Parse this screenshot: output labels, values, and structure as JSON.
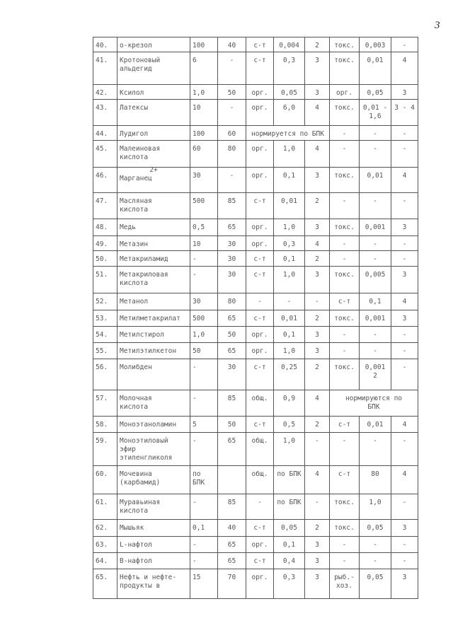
{
  "page_number": "3",
  "rows": [
    {
      "cells": [
        "40.",
        "о-крезол",
        "100",
        "40",
        "с-т",
        "0,004",
        "2",
        "токс.",
        "0,003",
        "-"
      ]
    },
    {
      "cells": [
        "41.",
        "Кротоновый\nальдегид",
        "6",
        "-",
        "с-т",
        "0,3",
        "3",
        "токс.",
        "0,01",
        "4"
      ]
    },
    {
      "cells": [
        "42.",
        "Ксилол",
        "1,0",
        "50",
        "орг.",
        "0,05",
        "3",
        "орг.",
        "0,05",
        "3"
      ]
    },
    {
      "cells": [
        "43.",
        "Латексы",
        "10",
        "-",
        "орг.",
        "6,0",
        "4",
        "токс.",
        "0,01 -\n1,6",
        "3 - 4"
      ]
    },
    {
      "cells": [
        "44.",
        "Лудигол",
        "100",
        "60",
        "нормируется по БПК",
        "-",
        "-",
        "-"
      ],
      "span": {
        "index": 4,
        "cols": 3
      }
    },
    {
      "cells": [
        "45.",
        "Малеиновая\nкислота",
        "60",
        "80",
        "орг.",
        "1,0",
        "4",
        "-",
        "-",
        "-"
      ]
    },
    {
      "cells": [
        "46.",
        "Марганец",
        "30",
        "-",
        "орг.",
        "0,1",
        "3",
        "токс.",
        "0,01",
        "4"
      ],
      "sup": "2+"
    },
    {
      "cells": [
        "47.",
        "Масляная\nкислота",
        "500",
        "85",
        "с-т",
        "0,01",
        "2",
        "-",
        "-",
        "-"
      ]
    },
    {
      "cells": [
        "48.",
        "Медь",
        "0,5",
        "65",
        "орг.",
        "1,0",
        "3",
        "токс.",
        "0,001",
        "3"
      ]
    },
    {
      "cells": [
        "49.",
        "Метазин",
        "10",
        "30",
        "орг.",
        "0,3",
        "4",
        "-",
        "-",
        "-"
      ]
    },
    {
      "cells": [
        "50.",
        "Метакриламид",
        "-",
        "30",
        "с-т",
        "0,1",
        "2",
        "-",
        "-",
        "-"
      ]
    },
    {
      "cells": [
        "51.",
        "Метакриловая\nкислота",
        "-",
        "30",
        "с-т",
        "1,0",
        "3",
        "токс.",
        "0,005",
        "3"
      ]
    },
    {
      "cells": [
        "52.",
        "Метанол",
        "30",
        "80",
        "-",
        "-",
        "-",
        "с-т",
        "0,1",
        "4"
      ]
    },
    {
      "cells": [
        "53.",
        "Метилметакрилат",
        "500",
        "65",
        "с-т",
        "0,01",
        "2",
        "токс.",
        "0,001",
        "3"
      ]
    },
    {
      "cells": [
        "54.",
        "Метилстирол",
        "1,0",
        "50",
        "орг.",
        "0,1",
        "3",
        "-",
        "-",
        "-"
      ]
    },
    {
      "cells": [
        "55.",
        "Метилэтилкетон",
        "50",
        "65",
        "орг.",
        "1,0",
        "3",
        "-",
        "-",
        "-"
      ]
    },
    {
      "cells": [
        "56.",
        "Молибден",
        "-",
        "30",
        "с-т",
        "0,25",
        "2",
        "токс.",
        "0,001\n2",
        "-"
      ]
    },
    {
      "cells": [
        "57.",
        "Молочная\nкислота",
        "-",
        "85",
        "общ.",
        "0,9",
        "4",
        "нормируются по\nБПК"
      ],
      "span": {
        "index": 7,
        "cols": 3
      }
    },
    {
      "cells": [
        "58.",
        "Моноэтаноламин",
        "5",
        "50",
        "с-т",
        "0,5",
        "2",
        "с-т",
        "0,01",
        "4"
      ]
    },
    {
      "cells": [
        "59.",
        "Моноэтиловый\nэфир\nэтиленгликоля",
        "-",
        "65",
        "общ.",
        "1,0",
        "-",
        "-",
        "-",
        "-"
      ]
    },
    {
      "cells": [
        "60.",
        "Мочевина\n(карбамид)",
        "по\nБПК",
        "",
        "общ.",
        "по БПК",
        "4",
        "с-т",
        "80",
        "4"
      ]
    },
    {
      "cells": [
        "61.",
        "Муравьиная\nкислота",
        "-",
        "85",
        "-",
        "по БПК",
        "-",
        "токс.",
        "1,0",
        "-"
      ]
    },
    {
      "cells": [
        "62.",
        "Мышьяк",
        "0,1",
        "40",
        "с-т",
        "0,05",
        "2",
        "токс.",
        "0,05",
        "3"
      ]
    },
    {
      "cells": [
        "63.",
        "L-нафтол",
        "-",
        "65",
        "орг.",
        "0,1",
        "3",
        "-",
        "-",
        "-"
      ]
    },
    {
      "cells": [
        "64.",
        "B-нафтол",
        "-",
        "65",
        "с-т",
        "0,4",
        "3",
        "-",
        "-",
        "-"
      ]
    },
    {
      "cells": [
        "65.",
        "Нефть и нефте-\nпродукты в",
        "15",
        "70",
        "орг.",
        "0,3",
        "3",
        "рыб.-\nхоз.",
        "0,05",
        "3"
      ]
    }
  ]
}
